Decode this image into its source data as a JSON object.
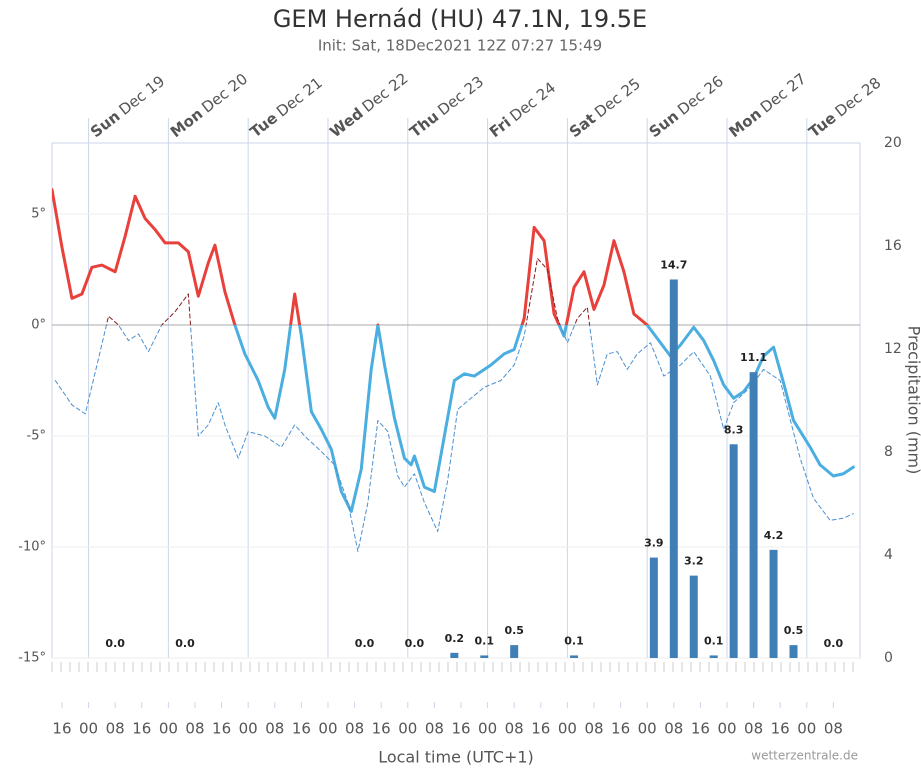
{
  "chart_data": {
    "type": "line",
    "title": "GEM Hernád (HU) 47.1N, 19.5E",
    "subtitle": "Init: Sat, 18Dec2021 12Z 07:27 15:49",
    "x_label": "Local time (UTC+1)",
    "y2_label": "Precipitation (mm)",
    "credit": "wetterzentrale.de",
    "xlim": [
      13,
      256
    ],
    "ylim": [
      -15,
      8.2
    ],
    "yticks": [
      {
        "value": 5,
        "label": "5°"
      },
      {
        "value": 0,
        "label": "0°"
      },
      {
        "value": -5,
        "label": "-5°"
      },
      {
        "value": -10,
        "label": "-10°"
      },
      {
        "value": -15,
        "label": "-15°"
      }
    ],
    "y2lim": [
      0,
      20
    ],
    "y2ticks": [
      0,
      4,
      8,
      12,
      16,
      20
    ],
    "xticks": [
      {
        "value": 16,
        "label": "16"
      },
      {
        "value": 24,
        "label": "00"
      },
      {
        "value": 32,
        "label": "08"
      },
      {
        "value": 40,
        "label": "16"
      },
      {
        "value": 48,
        "label": "00"
      },
      {
        "value": 56,
        "label": "08"
      },
      {
        "value": 64,
        "label": "16"
      },
      {
        "value": 72,
        "label": "00"
      },
      {
        "value": 80,
        "label": "08"
      },
      {
        "value": 88,
        "label": "16"
      },
      {
        "value": 96,
        "label": "00"
      },
      {
        "value": 104,
        "label": "08"
      },
      {
        "value": 112,
        "label": "16"
      },
      {
        "value": 120,
        "label": "00"
      },
      {
        "value": 128,
        "label": "08"
      },
      {
        "value": 136,
        "label": "16"
      },
      {
        "value": 144,
        "label": "00"
      },
      {
        "value": 152,
        "label": "08"
      },
      {
        "value": 160,
        "label": "16"
      },
      {
        "value": 168,
        "label": "00"
      },
      {
        "value": 176,
        "label": "08"
      },
      {
        "value": 184,
        "label": "16"
      },
      {
        "value": 192,
        "label": "00"
      },
      {
        "value": 200,
        "label": "08"
      },
      {
        "value": 208,
        "label": "16"
      },
      {
        "value": 216,
        "label": "00"
      },
      {
        "value": 224,
        "label": "08"
      },
      {
        "value": 232,
        "label": "16"
      },
      {
        "value": 240,
        "label": "00"
      },
      {
        "value": 248,
        "label": "08"
      }
    ],
    "day_labels": [
      {
        "x": 24,
        "weekday": "Sun",
        "date": "Dec 19"
      },
      {
        "x": 48,
        "weekday": "Mon",
        "date": "Dec 20"
      },
      {
        "x": 72,
        "weekday": "Tue",
        "date": "Dec 21"
      },
      {
        "x": 96,
        "weekday": "Wed",
        "date": "Dec 22"
      },
      {
        "x": 120,
        "weekday": "Thu",
        "date": "Dec 23"
      },
      {
        "x": 144,
        "weekday": "Fri",
        "date": "Dec 24"
      },
      {
        "x": 168,
        "weekday": "Sat",
        "date": "Dec 25"
      },
      {
        "x": 192,
        "weekday": "Sun",
        "date": "Dec 26"
      },
      {
        "x": 216,
        "weekday": "Mon",
        "date": "Dec 27"
      },
      {
        "x": 240,
        "weekday": "Tue",
        "date": "Dec 28"
      }
    ],
    "series": [
      {
        "type": "line",
        "color": "#4aaee0",
        "color_above_zero": "#e8413c",
        "width": 3,
        "x": [
          13,
          16,
          19,
          22,
          25,
          28,
          32,
          35,
          38,
          41,
          44,
          47,
          51,
          54,
          57,
          60,
          62,
          65,
          68,
          71,
          75,
          78,
          80,
          83,
          86,
          88,
          91,
          94,
          97,
          100,
          103,
          106,
          109,
          111,
          113,
          116,
          119,
          121,
          122,
          125,
          128,
          131,
          134,
          137,
          140,
          145,
          149,
          152,
          155,
          158,
          161,
          164,
          167,
          170,
          173,
          176,
          179,
          182,
          185,
          188,
          192,
          196,
          199,
          202,
          206,
          209,
          212,
          215,
          218,
          221,
          224,
          227,
          230,
          233,
          236,
          241,
          244,
          248,
          251,
          254
        ],
        "values": [
          6.1,
          3.5,
          1.2,
          1.4,
          2.6,
          2.7,
          2.4,
          4.0,
          5.8,
          4.8,
          4.3,
          3.7,
          3.7,
          3.3,
          1.3,
          2.8,
          3.6,
          1.5,
          0,
          -1.3,
          -2.5,
          -3.7,
          -4.2,
          -2.0,
          1.4,
          -0.5,
          -3.9,
          -4.7,
          -5.6,
          -7.5,
          -8.4,
          -6.5,
          -2.0,
          0,
          -1.8,
          -4.2,
          -6.0,
          -6.3,
          -5.9,
          -7.3,
          -7.5,
          -5.0,
          -2.5,
          -2.2,
          -2.3,
          -1.8,
          -1.3,
          -1.1,
          0.3,
          4.4,
          3.8,
          0.5,
          -0.5,
          1.7,
          2.4,
          0.7,
          1.8,
          3.8,
          2.4,
          0.5,
          0,
          -0.8,
          -1.4,
          -0.9,
          -0.1,
          -0.7,
          -1.6,
          -2.7,
          -3.3,
          -3.0,
          -2.4,
          -1.4,
          -1.0,
          -2.6,
          -4.3,
          -5.5,
          -6.3,
          -6.8,
          -6.7,
          -6.4
        ]
      },
      {
        "type": "dashed",
        "color": "#4a90d0",
        "color_above_zero": "#8b1a1a",
        "width": 1,
        "x": [
          14,
          19,
          23,
          27,
          30,
          33,
          36,
          39,
          42,
          46,
          50,
          54,
          57,
          60,
          63,
          65,
          69,
          72,
          77,
          82,
          86,
          89,
          94,
          98,
          102,
          105,
          108,
          111,
          114,
          117,
          119,
          122,
          125,
          129,
          132,
          135,
          139,
          143,
          148,
          152,
          155,
          159,
          162,
          165,
          168,
          171,
          174,
          177,
          180,
          183,
          186,
          189,
          193,
          197,
          202,
          206,
          211,
          215,
          218,
          223,
          227,
          232,
          238,
          242,
          247,
          251,
          254
        ],
        "values": [
          -2.5,
          -3.6,
          -4.0,
          -1.5,
          0.4,
          0.0,
          -0.7,
          -0.4,
          -1.2,
          0,
          0.6,
          1.4,
          -5.0,
          -4.5,
          -3.5,
          -4.5,
          -6.0,
          -4.8,
          -5.0,
          -5.5,
          -4.5,
          -5.0,
          -5.7,
          -6.3,
          -8.0,
          -10.2,
          -8.0,
          -4.3,
          -4.8,
          -6.8,
          -7.3,
          -6.7,
          -8.0,
          -9.3,
          -7.0,
          -3.8,
          -3.3,
          -2.8,
          -2.5,
          -1.8,
          -0.5,
          3.0,
          2.5,
          0.3,
          -0.8,
          0.3,
          0.8,
          -2.7,
          -1.3,
          -1.2,
          -2.0,
          -1.3,
          -0.8,
          -2.3,
          -1.8,
          -1.2,
          -2.3,
          -4.7,
          -3.5,
          -2.8,
          -2.0,
          -2.5,
          -6.0,
          -7.8,
          -8.8,
          -8.7,
          -8.5
        ]
      },
      {
        "type": "bar",
        "axis": "y2",
        "color": "#3f7fb5",
        "x": [
          32,
          53,
          107,
          122,
          134,
          143,
          152,
          170,
          194,
          200,
          206,
          212,
          218,
          224,
          230,
          236,
          248
        ],
        "values": [
          0,
          0,
          0,
          0,
          0.2,
          0.1,
          0.5,
          0.1,
          3.9,
          14.7,
          3.2,
          0.1,
          8.3,
          11.1,
          4.2,
          0.5,
          0
        ],
        "value_labels": [
          "0.0",
          "0.0",
          "0.0",
          "0.0",
          "0.2",
          "0.1",
          "0.5",
          "0.1",
          "3.9",
          "14.7",
          "3.2",
          "0.1",
          "8.3",
          "11.1",
          "4.2",
          "0.5",
          "0.0"
        ]
      }
    ]
  }
}
